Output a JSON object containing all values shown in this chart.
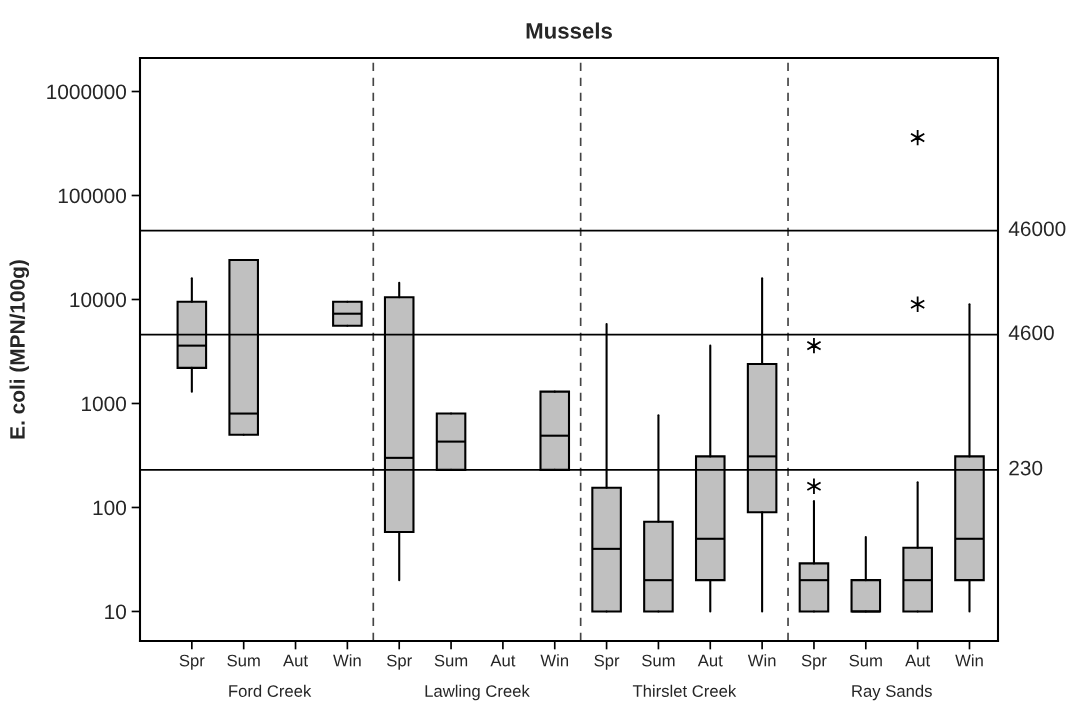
{
  "chart_data": {
    "type": "box",
    "title": "Mussels",
    "ylabel": "E. coli (MPN/100g)",
    "categories": [
      "Spr",
      "Sum",
      "Aut",
      "Win",
      "Spr",
      "Sum",
      "Aut",
      "Win",
      "Spr",
      "Sum",
      "Aut",
      "Win",
      "Spr",
      "Sum",
      "Aut",
      "Win"
    ],
    "color": "#c0c0c0",
    "boxes": [
      {
        "low": 1300,
        "q1": 2200,
        "median": 3600,
        "q3": 9500,
        "high": 16000
      },
      {
        "low": 500,
        "q1": 500,
        "median": 800,
        "q3": 24000,
        "high": 24000
      },
      null,
      {
        "low": 5600,
        "q1": 5600,
        "median": 7300,
        "q3": 9500,
        "high": 9500
      },
      {
        "low": 20,
        "q1": 58,
        "median": 300,
        "q3": 10500,
        "high": 14500
      },
      {
        "low": 230,
        "q1": 230,
        "median": 430,
        "q3": 800,
        "high": 800
      },
      null,
      {
        "low": 230,
        "q1": 230,
        "median": 490,
        "q3": 1300,
        "high": 1300
      },
      {
        "low": 10,
        "q1": 10,
        "median": 40,
        "q3": 155,
        "high": 5800
      },
      {
        "low": 10,
        "q1": 10,
        "median": 20,
        "q3": 73,
        "high": 770
      },
      {
        "low": 10,
        "q1": 20,
        "median": 50,
        "q3": 310,
        "high": 3600
      },
      {
        "low": 10,
        "q1": 90,
        "median": 310,
        "q3": 2400,
        "high": 16000
      },
      {
        "low": 10,
        "q1": 10,
        "median": 20,
        "q3": 29,
        "high": 115,
        "outliers": [
          160,
          3600
        ]
      },
      {
        "low": 10,
        "q1": 10,
        "median": 10,
        "q3": 20,
        "high": 52
      },
      {
        "low": 10,
        "q1": 10,
        "median": 20,
        "q3": 41,
        "high": 175,
        "outliers": [
          9000,
          360000
        ]
      },
      {
        "low": 10,
        "q1": 20,
        "median": 50,
        "q3": 310,
        "high": 9000
      }
    ],
    "annotations": [
      "Ford Creek",
      "Lawling Creek",
      "Thirslet Creek",
      "Ray Sands"
    ],
    "log": true,
    "ylim": [
      5.2,
      2100000
    ],
    "yticks": [
      10,
      100,
      1000,
      10000,
      100000,
      1000000
    ],
    "ref_lines": [
      {
        "axis": "y",
        "value": 230,
        "label": "230"
      },
      {
        "axis": "y",
        "value": 4600,
        "label": "4600"
      },
      {
        "axis": "y",
        "value": 46000,
        "label": "46000"
      }
    ],
    "grid": false,
    "marker": "star"
  }
}
